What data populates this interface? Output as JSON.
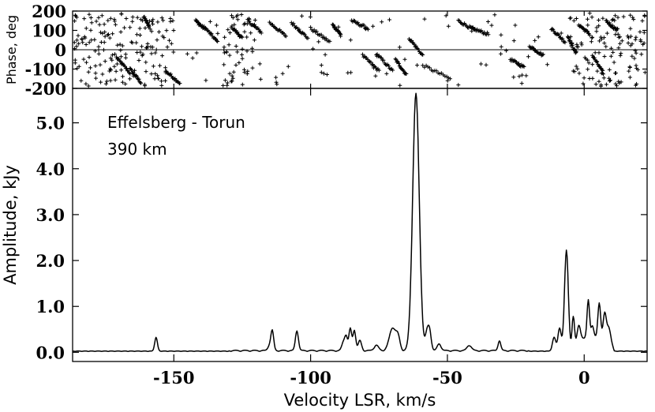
{
  "chart_data": [
    {
      "type": "scatter",
      "panel": "phase",
      "ylabel": "Phase, deg",
      "xlim": [
        -187,
        23
      ],
      "ylim": [
        -200,
        200
      ],
      "y_ticks": [
        200,
        100,
        0,
        -100,
        -200
      ],
      "marker": "plus",
      "segments": [
        {
          "x": [
            -171,
            -166
          ],
          "y": [
            -40,
            -120
          ]
        },
        {
          "x": [
            -166,
            -162
          ],
          "y": [
            -100,
            -170
          ]
        },
        {
          "x": [
            -161,
            -159
          ],
          "y": [
            170,
            120
          ]
        },
        {
          "x": [
            -153,
            -148
          ],
          "y": [
            -110,
            -170
          ]
        },
        {
          "x": [
            -142,
            -139
          ],
          "y": [
            150,
            110
          ]
        },
        {
          "x": [
            -139,
            -134
          ],
          "y": [
            120,
            40
          ]
        },
        {
          "x": [
            -129,
            -125
          ],
          "y": [
            120,
            60
          ]
        },
        {
          "x": [
            -123,
            -118
          ],
          "y": [
            150,
            90
          ]
        },
        {
          "x": [
            -115,
            -109
          ],
          "y": [
            140,
            70
          ]
        },
        {
          "x": [
            -107,
            -101
          ],
          "y": [
            140,
            60
          ]
        },
        {
          "x": [
            -100,
            -93
          ],
          "y": [
            110,
            40
          ]
        },
        {
          "x": [
            -92,
            -89
          ],
          "y": [
            130,
            80
          ]
        },
        {
          "x": [
            -85,
            -79
          ],
          "y": [
            150,
            110
          ]
        },
        {
          "x": [
            -81,
            -75
          ],
          "y": [
            -30,
            -110
          ]
        },
        {
          "x": [
            -76,
            -70
          ],
          "y": [
            -20,
            -110
          ]
        },
        {
          "x": [
            -69,
            -65
          ],
          "y": [
            -50,
            -130
          ]
        },
        {
          "x": [
            -64,
            -59
          ],
          "y": [
            60,
            -30
          ]
        },
        {
          "x": [
            -59,
            -49
          ],
          "y": [
            -80,
            -150
          ]
        },
        {
          "x": [
            -46,
            -40
          ],
          "y": [
            150,
            100
          ]
        },
        {
          "x": [
            -41,
            -35
          ],
          "y": [
            110,
            80
          ]
        },
        {
          "x": [
            -27,
            -22
          ],
          "y": [
            -50,
            -90
          ]
        },
        {
          "x": [
            -20,
            -15
          ],
          "y": [
            20,
            -30
          ]
        },
        {
          "x": [
            -12,
            -7
          ],
          "y": [
            110,
            40
          ]
        },
        {
          "x": [
            -6,
            -3
          ],
          "y": [
            70,
            -20
          ]
        },
        {
          "x": [
            -2,
            2
          ],
          "y": [
            130,
            80
          ]
        },
        {
          "x": [
            3,
            7
          ],
          "y": [
            -30,
            -120
          ]
        },
        {
          "x": [
            8,
            12
          ],
          "y": [
            150,
            100
          ]
        }
      ],
      "noise_ranges": [
        [
          -187,
          -150
        ],
        [
          -132,
          -120
        ],
        [
          -5,
          23
        ]
      ]
    },
    {
      "type": "line",
      "panel": "amplitude",
      "xlabel": "Velocity LSR, km/s",
      "ylabel": "Amplitude, kJy",
      "xlim": [
        -187,
        23
      ],
      "ylim": [
        -0.2,
        5.75
      ],
      "x_ticks": [
        -150,
        -100,
        -50,
        0
      ],
      "y_ticks": [
        0.0,
        1.0,
        2.0,
        3.0,
        4.0,
        5.0
      ],
      "y_tick_labels": [
        "0.0",
        "1.0",
        "2.0",
        "3.0",
        "4.0",
        "5.0"
      ],
      "baseline": 0.02,
      "peaks": [
        {
          "v": -156.5,
          "a": 0.3,
          "w": 0.5
        },
        {
          "v": -115.0,
          "a": 0.12,
          "w": 0.6
        },
        {
          "v": -114.0,
          "a": 0.42,
          "w": 0.5
        },
        {
          "v": -105.0,
          "a": 0.44,
          "w": 0.55
        },
        {
          "v": -88.0,
          "a": 0.18,
          "w": 0.6
        },
        {
          "v": -87.0,
          "a": 0.3,
          "w": 0.5
        },
        {
          "v": -85.5,
          "a": 0.48,
          "w": 0.5
        },
        {
          "v": -84.0,
          "a": 0.45,
          "w": 0.5
        },
        {
          "v": -82.0,
          "a": 0.22,
          "w": 0.6
        },
        {
          "v": -76.0,
          "a": 0.12,
          "w": 0.8
        },
        {
          "v": -70.0,
          "a": 0.5,
          "w": 1.2
        },
        {
          "v": -68.0,
          "a": 0.25,
          "w": 0.7
        },
        {
          "v": -61.5,
          "a": 5.6,
          "w": 1.2
        },
        {
          "v": -57.5,
          "a": 0.35,
          "w": 0.6
        },
        {
          "v": -56.5,
          "a": 0.42,
          "w": 0.6
        },
        {
          "v": -53.0,
          "a": 0.15,
          "w": 0.7
        },
        {
          "v": -42.0,
          "a": 0.12,
          "w": 0.8
        },
        {
          "v": -31.0,
          "a": 0.22,
          "w": 0.5
        },
        {
          "v": -11.0,
          "a": 0.3,
          "w": 0.6
        },
        {
          "v": -9.0,
          "a": 0.5,
          "w": 0.6
        },
        {
          "v": -6.5,
          "a": 2.2,
          "w": 0.7
        },
        {
          "v": -4.0,
          "a": 0.75,
          "w": 0.45
        },
        {
          "v": -2.0,
          "a": 0.35,
          "w": 0.6
        },
        {
          "v": 1.5,
          "a": 0.82,
          "w": 0.45
        },
        {
          "v": 3.0,
          "a": 0.25,
          "w": 0.5
        },
        {
          "v": 5.5,
          "a": 0.75,
          "w": 0.5
        },
        {
          "v": 7.5,
          "a": 0.55,
          "w": 0.55
        },
        {
          "v": 9.0,
          "a": 0.3,
          "w": 0.7
        }
      ],
      "plateau": {
        "from": -4,
        "to": 11,
        "a": 0.3
      }
    }
  ],
  "annotations": {
    "baseline_label": "Effelsberg - Torun",
    "distance_label": "390 km"
  }
}
